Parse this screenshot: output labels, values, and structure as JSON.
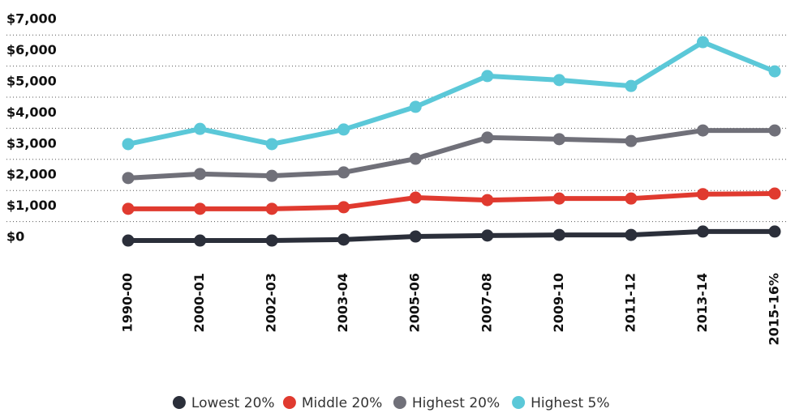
{
  "chart_data": {
    "type": "line",
    "categories": [
      "1990-00",
      "2000-01",
      "2002-03",
      "2003-04",
      "2005-06",
      "2007-08",
      "2009-10",
      "2011-12",
      "2013-14",
      "2015-16%"
    ],
    "series": [
      {
        "name": "Lowest 20%",
        "color": "#2b2f3a",
        "values": [
          390,
          390,
          390,
          420,
          520,
          550,
          570,
          570,
          680,
          680
        ]
      },
      {
        "name": "Middle 20%",
        "color": "#e03a2f",
        "values": [
          1410,
          1410,
          1410,
          1460,
          1770,
          1690,
          1740,
          1740,
          1880,
          1900
        ]
      },
      {
        "name": "Highest 20%",
        "color": "#707079",
        "values": [
          2400,
          2530,
          2470,
          2580,
          3020,
          3700,
          3650,
          3590,
          3930,
          3930
        ]
      },
      {
        "name": "Highest 5%",
        "color": "#5bc8d8",
        "values": [
          3490,
          3980,
          3490,
          3960,
          4690,
          5680,
          5550,
          5360,
          6770,
          5830
        ]
      }
    ],
    "ylim": [
      0,
      7000
    ],
    "yticks": [
      {
        "value": 0,
        "label": "$0"
      },
      {
        "value": 1000,
        "label": "$1,000"
      },
      {
        "value": 2000,
        "label": "$2,000"
      },
      {
        "value": 3000,
        "label": "$3,000"
      },
      {
        "value": 4000,
        "label": "$4,000"
      },
      {
        "value": 5000,
        "label": "$5,000"
      },
      {
        "value": 6000,
        "label": "$6,000"
      },
      {
        "value": 7000,
        "label": "$7,000"
      }
    ],
    "grid": true,
    "legend": "bottom"
  }
}
